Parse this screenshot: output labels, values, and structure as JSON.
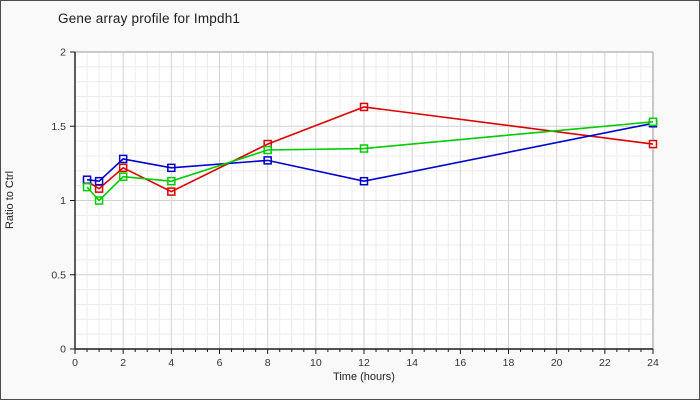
{
  "title": "Gene array profile for Impdh1",
  "chart_data": {
    "type": "line",
    "title": "Gene array profile for Impdh1",
    "xlabel": "Time (hours)",
    "ylabel": "Ratio to Ctrl",
    "x": [
      0.5,
      1,
      2,
      4,
      8,
      12,
      24
    ],
    "series": [
      {
        "name": "red-series",
        "color": "#DD0000",
        "values": [
          1.13,
          1.08,
          1.22,
          1.06,
          1.38,
          1.63,
          1.38
        ]
      },
      {
        "name": "blue-series",
        "color": "#0000CC",
        "values": [
          1.14,
          1.13,
          1.28,
          1.22,
          1.27,
          1.13,
          1.52
        ]
      },
      {
        "name": "green-series",
        "color": "#00CC00",
        "values": [
          1.09,
          1.0,
          1.16,
          1.13,
          1.34,
          1.35,
          1.53
        ]
      }
    ],
    "xlim": [
      0,
      24
    ],
    "ylim": [
      0,
      2
    ],
    "xticks": [
      0,
      2,
      4,
      6,
      8,
      10,
      12,
      14,
      16,
      18,
      20,
      22,
      24
    ],
    "yticks": [
      0,
      0.5,
      1,
      1.5,
      2
    ],
    "x_minor_step": 0.5,
    "y_minor_step": 0.1,
    "grid": true,
    "legend": "none",
    "marker": "open-square"
  },
  "colors": {
    "figure_bg": "#f9f9f9",
    "plot_bg": "#ffffff",
    "minor_grid": "#ececec",
    "major_grid": "#d2d2d2",
    "frame_top_right": "#bbbbbb",
    "axis": "#1a1a1a",
    "tick_label": "#333333",
    "outer_border": "#4d4d4d"
  }
}
